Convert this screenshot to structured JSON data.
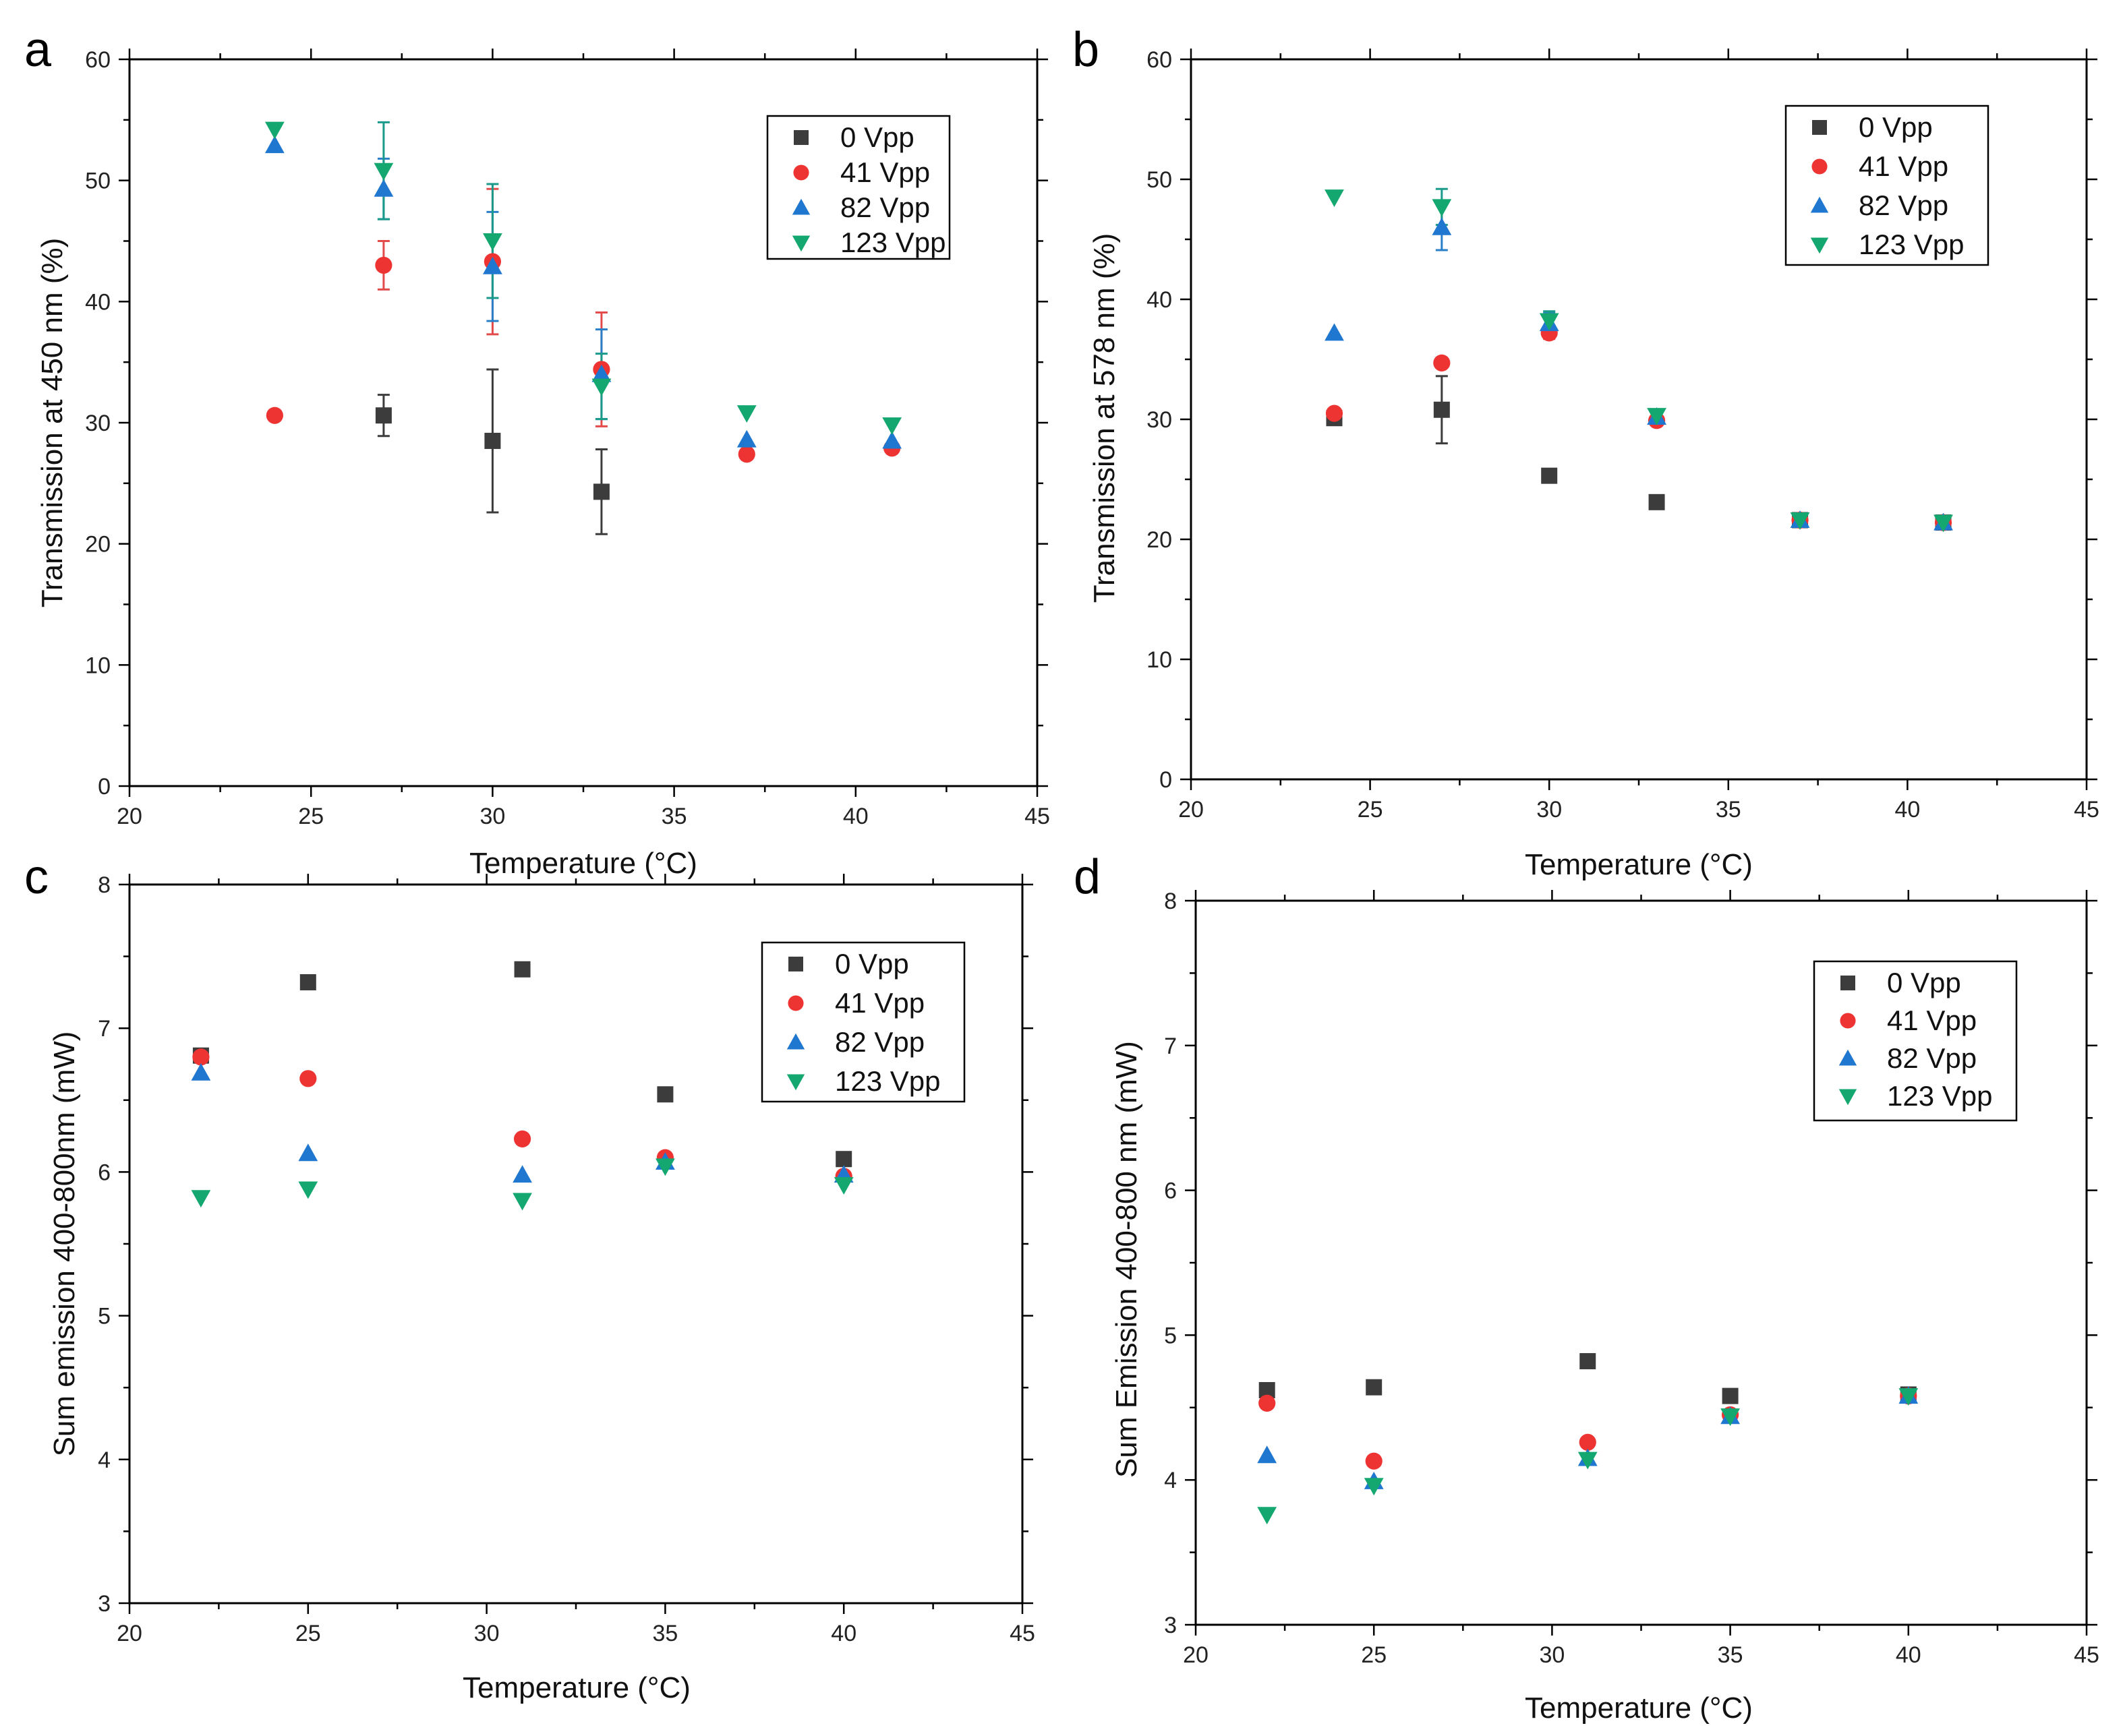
{
  "colors": {
    "0 Vpp": "#3c3c3c",
    "41 Vpp": "#ee3333",
    "82 Vpp": "#1f77d0",
    "123 Vpp": "#14a870",
    "errorbar_41": "#e34b4b",
    "errorbar_82": "#2a7fc9",
    "errorbar_123": "#1a9a8a"
  },
  "chart_data": [
    {
      "panel": "a",
      "type": "scatter",
      "xlabel": "Temperature (°C)",
      "ylabel": "Transmission at 450 nm (%)",
      "xlim": [
        20,
        45
      ],
      "ylim": [
        0,
        60
      ],
      "xticks": [
        20,
        25,
        30,
        35,
        40,
        45
      ],
      "yticks": [
        0,
        10,
        20,
        30,
        40,
        50,
        60
      ],
      "legend": "top-right",
      "series": [
        {
          "name": "0 Vpp",
          "marker": "square",
          "points": [
            {
              "x": 27,
              "y": 30.6,
              "err": 1.7
            },
            {
              "x": 30,
              "y": 28.5,
              "err": 5.9
            },
            {
              "x": 33,
              "y": 24.3,
              "err": 3.5
            }
          ]
        },
        {
          "name": "41 Vpp",
          "marker": "circle",
          "points": [
            {
              "x": 24,
              "y": 30.6,
              "err": 0
            },
            {
              "x": 27,
              "y": 43.0,
              "err": 2.0
            },
            {
              "x": 30,
              "y": 43.3,
              "err": 6.0
            },
            {
              "x": 33,
              "y": 34.4,
              "err": 4.7
            },
            {
              "x": 37,
              "y": 27.4,
              "err": 0
            },
            {
              "x": 41,
              "y": 27.9,
              "err": 0
            }
          ]
        },
        {
          "name": "82 Vpp",
          "marker": "triangle-up",
          "points": [
            {
              "x": 24,
              "y": 52.9,
              "err": 0
            },
            {
              "x": 27,
              "y": 49.3,
              "err": 2.5
            },
            {
              "x": 30,
              "y": 42.9,
              "err": 4.5
            },
            {
              "x": 33,
              "y": 34.0,
              "err": 3.7
            },
            {
              "x": 37,
              "y": 28.6,
              "err": 0
            },
            {
              "x": 41,
              "y": 28.5,
              "err": 0
            }
          ]
        },
        {
          "name": "123 Vpp",
          "marker": "triangle-down",
          "points": [
            {
              "x": 24,
              "y": 54.2,
              "err": 0
            },
            {
              "x": 27,
              "y": 50.8,
              "err": 4.0
            },
            {
              "x": 30,
              "y": 45.0,
              "err": 4.7
            },
            {
              "x": 33,
              "y": 33.0,
              "err": 2.7
            },
            {
              "x": 37,
              "y": 30.8,
              "err": 0
            },
            {
              "x": 41,
              "y": 29.8,
              "err": 0
            }
          ]
        }
      ]
    },
    {
      "panel": "b",
      "type": "scatter",
      "xlabel": "Temperature (°C)",
      "ylabel": "Transmission at 578 nm (%)",
      "xlim": [
        20,
        45
      ],
      "ylim": [
        0,
        60
      ],
      "xticks": [
        20,
        25,
        30,
        35,
        40,
        45
      ],
      "yticks": [
        0,
        10,
        20,
        30,
        40,
        50,
        60
      ],
      "legend": "top-right",
      "series": [
        {
          "name": "0 Vpp",
          "marker": "square",
          "points": [
            {
              "x": 24,
              "y": 30.1,
              "err": 0
            },
            {
              "x": 27,
              "y": 30.8,
              "err": 2.8
            },
            {
              "x": 30,
              "y": 25.3,
              "err": 0.4
            },
            {
              "x": 33,
              "y": 23.1,
              "err": 0
            },
            {
              "x": 37,
              "y": 21.6,
              "err": 0
            },
            {
              "x": 41,
              "y": 21.4,
              "err": 0
            }
          ]
        },
        {
          "name": "41 Vpp",
          "marker": "circle",
          "points": [
            {
              "x": 24,
              "y": 30.5,
              "err": 0
            },
            {
              "x": 27,
              "y": 34.7,
              "err": 0
            },
            {
              "x": 30,
              "y": 37.2,
              "err": 0.5
            },
            {
              "x": 33,
              "y": 29.9,
              "err": 0
            },
            {
              "x": 37,
              "y": 21.6,
              "err": 0
            },
            {
              "x": 41,
              "y": 21.4,
              "err": 0
            }
          ]
        },
        {
          "name": "82 Vpp",
          "marker": "triangle-up",
          "points": [
            {
              "x": 24,
              "y": 37.2,
              "err": 0
            },
            {
              "x": 27,
              "y": 46.0,
              "err": 1.9
            },
            {
              "x": 30,
              "y": 38.0,
              "err": 0.9
            },
            {
              "x": 33,
              "y": 30.2,
              "err": 0
            },
            {
              "x": 37,
              "y": 21.6,
              "err": 0
            },
            {
              "x": 41,
              "y": 21.4,
              "err": 0
            }
          ]
        },
        {
          "name": "123 Vpp",
          "marker": "triangle-down",
          "points": [
            {
              "x": 24,
              "y": 48.5,
              "err": 0
            },
            {
              "x": 27,
              "y": 47.7,
              "err": 1.5
            },
            {
              "x": 30,
              "y": 38.2,
              "err": 0.8
            },
            {
              "x": 33,
              "y": 30.3,
              "err": 0
            },
            {
              "x": 37,
              "y": 21.6,
              "err": 0
            },
            {
              "x": 41,
              "y": 21.4,
              "err": 0
            }
          ]
        }
      ]
    },
    {
      "panel": "c",
      "type": "scatter",
      "xlabel": "Temperature (°C)",
      "ylabel": "Sum emission 400-800nm (mW)",
      "xlim": [
        20,
        45
      ],
      "ylim": [
        3,
        8
      ],
      "xticks": [
        20,
        25,
        30,
        35,
        40,
        45
      ],
      "yticks": [
        3,
        4,
        5,
        6,
        7,
        8
      ],
      "legend": "top-right",
      "series": [
        {
          "name": "0 Vpp",
          "marker": "square",
          "points": [
            {
              "x": 22,
              "y": 6.81,
              "err": 0
            },
            {
              "x": 25,
              "y": 7.32,
              "err": 0
            },
            {
              "x": 31,
              "y": 7.41,
              "err": 0
            },
            {
              "x": 35,
              "y": 6.54,
              "err": 0
            },
            {
              "x": 40,
              "y": 6.09,
              "err": 0
            }
          ]
        },
        {
          "name": "41 Vpp",
          "marker": "circle",
          "points": [
            {
              "x": 22,
              "y": 6.8,
              "err": 0
            },
            {
              "x": 25,
              "y": 6.65,
              "err": 0
            },
            {
              "x": 31,
              "y": 6.23,
              "err": 0
            },
            {
              "x": 35,
              "y": 6.1,
              "err": 0
            },
            {
              "x": 40,
              "y": 5.97,
              "err": 0
            }
          ]
        },
        {
          "name": "82 Vpp",
          "marker": "triangle-up",
          "points": [
            {
              "x": 22,
              "y": 6.69,
              "err": 0
            },
            {
              "x": 25,
              "y": 6.13,
              "err": 0
            },
            {
              "x": 31,
              "y": 5.98,
              "err": 0
            },
            {
              "x": 35,
              "y": 6.07,
              "err": 0
            },
            {
              "x": 40,
              "y": 5.98,
              "err": 0
            }
          ]
        },
        {
          "name": "123 Vpp",
          "marker": "triangle-down",
          "points": [
            {
              "x": 22,
              "y": 5.82,
              "err": 0
            },
            {
              "x": 25,
              "y": 5.88,
              "err": 0
            },
            {
              "x": 31,
              "y": 5.8,
              "err": 0
            },
            {
              "x": 35,
              "y": 6.04,
              "err": 0
            },
            {
              "x": 40,
              "y": 5.91,
              "err": 0
            }
          ]
        }
      ]
    },
    {
      "panel": "d",
      "type": "scatter",
      "xlabel": "Temperature (°C)",
      "ylabel": "Sum Emission 400-800 nm (mW)",
      "xlim": [
        20,
        45
      ],
      "ylim": [
        3,
        8
      ],
      "xticks": [
        20,
        25,
        30,
        35,
        40,
        45
      ],
      "yticks": [
        3,
        4,
        5,
        6,
        7,
        8
      ],
      "legend": "top-right",
      "series": [
        {
          "name": "0 Vpp",
          "marker": "square",
          "points": [
            {
              "x": 22,
              "y": 4.62,
              "err": 0
            },
            {
              "x": 25,
              "y": 4.64,
              "err": 0
            },
            {
              "x": 31,
              "y": 4.82,
              "err": 0
            },
            {
              "x": 35,
              "y": 4.58,
              "err": 0
            },
            {
              "x": 40,
              "y": 4.59,
              "err": 0
            }
          ]
        },
        {
          "name": "41 Vpp",
          "marker": "circle",
          "points": [
            {
              "x": 22,
              "y": 4.53,
              "err": 0
            },
            {
              "x": 25,
              "y": 4.13,
              "err": 0
            },
            {
              "x": 31,
              "y": 4.26,
              "err": 0
            },
            {
              "x": 35,
              "y": 4.45,
              "err": 0
            },
            {
              "x": 40,
              "y": 4.58,
              "err": 0
            }
          ]
        },
        {
          "name": "82 Vpp",
          "marker": "triangle-up",
          "points": [
            {
              "x": 22,
              "y": 4.17,
              "err": 0
            },
            {
              "x": 25,
              "y": 3.99,
              "err": 0
            },
            {
              "x": 31,
              "y": 4.15,
              "err": 0
            },
            {
              "x": 35,
              "y": 4.44,
              "err": 0
            },
            {
              "x": 40,
              "y": 4.58,
              "err": 0
            }
          ]
        },
        {
          "name": "123 Vpp",
          "marker": "triangle-down",
          "points": [
            {
              "x": 22,
              "y": 3.76,
              "err": 0
            },
            {
              "x": 25,
              "y": 3.96,
              "err": 0
            },
            {
              "x": 31,
              "y": 4.14,
              "err": 0
            },
            {
              "x": 35,
              "y": 4.44,
              "err": 0
            },
            {
              "x": 40,
              "y": 4.58,
              "err": 0
            }
          ]
        }
      ]
    }
  ]
}
